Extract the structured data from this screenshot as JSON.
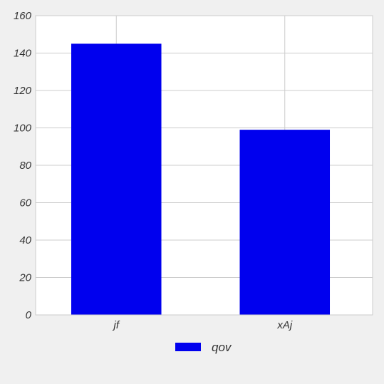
{
  "chart_data": {
    "type": "bar",
    "categories": [
      "jf",
      "xAj"
    ],
    "series": [
      {
        "name": "qov",
        "values": [
          145,
          99
        ],
        "color": "#0000ee"
      }
    ],
    "ylim": [
      0,
      160
    ],
    "yticks": [
      0,
      20,
      40,
      60,
      80,
      100,
      120,
      140,
      160
    ],
    "grid": true,
    "legend_position": "bottom-center",
    "background": "#f0f0f0",
    "plot_background": "#ffffff",
    "grid_color": "#cccccc"
  }
}
